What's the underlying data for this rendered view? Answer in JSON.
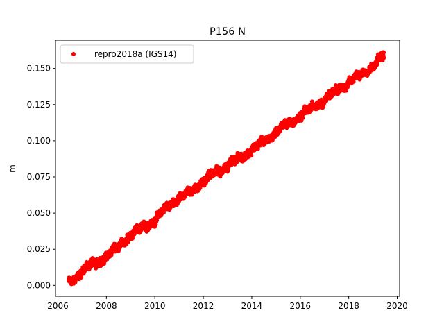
{
  "chart_data": {
    "type": "scatter",
    "title": "P156 N",
    "xlabel": "",
    "ylabel": "m",
    "xlim": [
      2005.9,
      2020.1
    ],
    "ylim": [
      -0.0075,
      0.1695
    ],
    "xticks": [
      2006,
      2008,
      2010,
      2012,
      2014,
      2016,
      2018,
      2020
    ],
    "xtick_labels": [
      "2006",
      "2008",
      "2010",
      "2012",
      "2014",
      "2016",
      "2018",
      "2020"
    ],
    "yticks": [
      0.0,
      0.025,
      0.05,
      0.075,
      0.1,
      0.125,
      0.15
    ],
    "ytick_labels": [
      "0.000",
      "0.025",
      "0.050",
      "0.075",
      "0.100",
      "0.125",
      "0.150"
    ],
    "grid": false,
    "legend_position": "upper-left",
    "series": [
      {
        "name": "repro2018a (IGS14)",
        "color": "#ff0000",
        "marker": "circle",
        "x_range": [
          2006.45,
          2019.45
        ],
        "trend": {
          "x": [
            2006.5,
            2007.0,
            2007.5,
            2008.0,
            2008.5,
            2009.0,
            2009.5,
            2010.0,
            2010.5,
            2011.0,
            2011.5,
            2012.0,
            2012.5,
            2013.0,
            2013.5,
            2014.0,
            2014.5,
            2015.0,
            2015.5,
            2016.0,
            2016.5,
            2017.0,
            2017.5,
            2018.0,
            2018.5,
            2019.0,
            2019.4
          ],
          "y": [
            0.002,
            0.01,
            0.015,
            0.02,
            0.027,
            0.035,
            0.04,
            0.045,
            0.054,
            0.06,
            0.065,
            0.072,
            0.078,
            0.083,
            0.088,
            0.094,
            0.099,
            0.106,
            0.112,
            0.117,
            0.123,
            0.128,
            0.135,
            0.14,
            0.146,
            0.151,
            0.158
          ]
        },
        "noise_amplitude": 0.0025
      }
    ]
  }
}
